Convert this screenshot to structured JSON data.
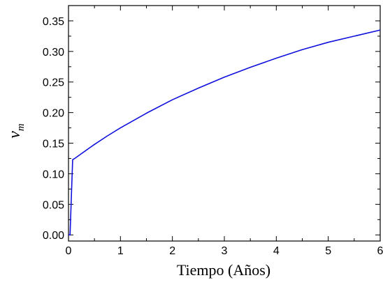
{
  "chart_data": {
    "type": "line",
    "title": "",
    "xlabel": "Tiempo (Años)",
    "ylabel": "v",
    "ylabel_subscript": "m",
    "xlim": [
      0,
      6
    ],
    "ylim": [
      -0.01,
      0.375
    ],
    "x_ticks": [
      0,
      1,
      2,
      3,
      4,
      5,
      6
    ],
    "x_tick_labels": [
      "0",
      "1",
      "2",
      "3",
      "4",
      "5",
      "6"
    ],
    "y_ticks": [
      0.0,
      0.05,
      0.1,
      0.15,
      0.2,
      0.25,
      0.3,
      0.35
    ],
    "y_tick_labels": [
      "0.00",
      "0.05",
      "0.10",
      "0.15",
      "0.20",
      "0.25",
      "0.30",
      "0.35"
    ],
    "grid": false,
    "legend": "none",
    "series": [
      {
        "color": "#1010dd",
        "x": [
          0.0,
          0.02,
          0.03,
          0.05,
          0.08,
          0.12,
          0.25,
          0.5,
          0.75,
          1.0,
          1.5,
          2.0,
          2.5,
          3.0,
          3.5,
          4.0,
          4.5,
          5.0,
          5.5,
          6.0
        ],
        "y": [
          0.0,
          0.0,
          0.0,
          0.05,
          0.123,
          0.125,
          0.133,
          0.148,
          0.162,
          0.175,
          0.199,
          0.221,
          0.24,
          0.258,
          0.274,
          0.289,
          0.303,
          0.315,
          0.325,
          0.335
        ]
      }
    ]
  }
}
